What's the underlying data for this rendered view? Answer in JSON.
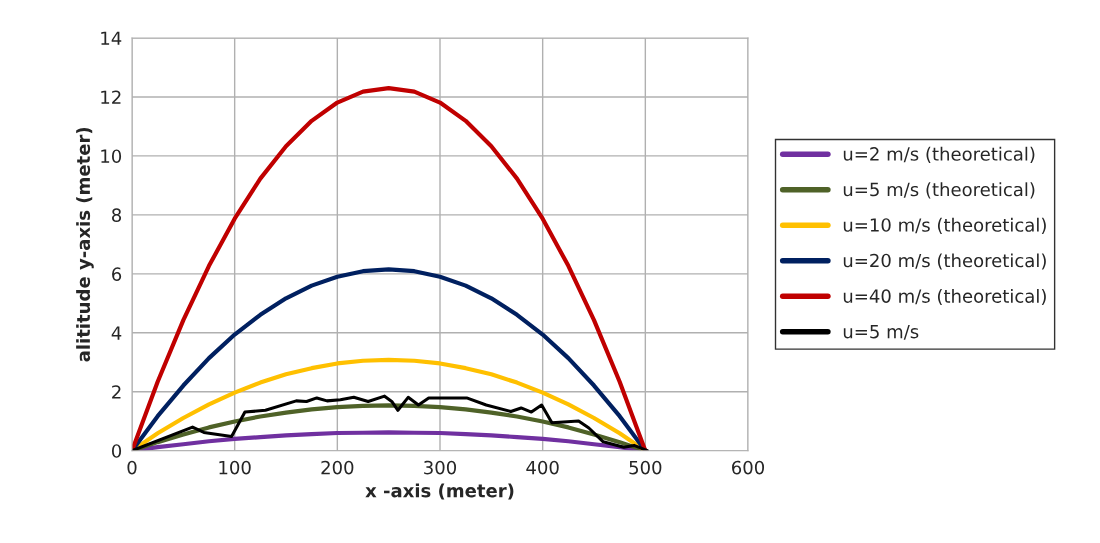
{
  "chart_data": {
    "type": "line",
    "xlabel": "x -axis (meter)",
    "ylabel": "alititude y-axis (meter)",
    "xlim": [
      0,
      600
    ],
    "xticks": [
      0,
      100,
      200,
      300,
      400,
      500,
      600
    ],
    "ylim": [
      0,
      14
    ],
    "yticks": [
      0,
      2,
      4,
      6,
      8,
      10,
      12,
      14
    ],
    "grid": true,
    "legend": "right",
    "marker": "none",
    "line_style": "solid",
    "x": [
      0,
      25,
      50,
      75,
      100,
      125,
      150,
      175,
      200,
      225,
      250,
      275,
      300,
      325,
      350,
      375,
      400,
      425,
      450,
      475,
      500
    ],
    "series": [
      {
        "name": "u=2 m/s (theoretical)",
        "color": "#7030a0",
        "values": [
          0,
          0.12,
          0.22,
          0.32,
          0.4,
          0.46,
          0.52,
          0.56,
          0.6,
          0.61,
          0.62,
          0.61,
          0.6,
          0.56,
          0.52,
          0.46,
          0.4,
          0.32,
          0.22,
          0.12,
          0
        ]
      },
      {
        "name": "u=5 m/s (theoretical)",
        "color": "#4f6228",
        "values": [
          0,
          0.29,
          0.55,
          0.79,
          0.99,
          1.16,
          1.29,
          1.4,
          1.48,
          1.52,
          1.54,
          1.52,
          1.48,
          1.4,
          1.29,
          1.16,
          0.99,
          0.79,
          0.55,
          0.29,
          0
        ]
      },
      {
        "name": "u=10 m/s (theoretical)",
        "color": "#ffc000",
        "values": [
          0,
          0.59,
          1.11,
          1.57,
          1.97,
          2.31,
          2.59,
          2.8,
          2.96,
          3.05,
          3.08,
          3.05,
          2.96,
          2.8,
          2.59,
          2.31,
          1.97,
          1.57,
          1.11,
          0.59,
          0
        ]
      },
      {
        "name": "u=20 m/s (theoretical)",
        "color": "#002060",
        "values": [
          0,
          1.17,
          2.21,
          3.14,
          3.94,
          4.61,
          5.17,
          5.6,
          5.9,
          6.09,
          6.15,
          6.09,
          5.9,
          5.6,
          5.17,
          4.61,
          3.94,
          3.14,
          2.21,
          1.17,
          0
        ]
      },
      {
        "name": "u=40 m/s (theoretical)",
        "color": "#c00000",
        "values": [
          0,
          2.34,
          4.43,
          6.27,
          7.87,
          9.23,
          10.33,
          11.19,
          11.81,
          12.18,
          12.3,
          12.18,
          11.81,
          11.19,
          10.33,
          9.23,
          7.87,
          6.27,
          4.43,
          2.34,
          0
        ]
      },
      {
        "name": "u=5 m/s",
        "color": "#000000",
        "x": [
          0,
          59,
          70,
          97,
          110,
          130,
          160,
          170,
          180,
          190,
          203,
          216,
          230,
          246,
          253,
          259,
          269,
          279,
          289,
          326,
          345,
          369,
          379,
          389,
          399,
          409,
          435,
          445,
          459,
          479,
          489,
          502
        ],
        "values": [
          0,
          0.8,
          0.62,
          0.48,
          1.31,
          1.37,
          1.69,
          1.67,
          1.79,
          1.69,
          1.73,
          1.81,
          1.67,
          1.85,
          1.67,
          1.37,
          1.81,
          1.55,
          1.79,
          1.79,
          1.55,
          1.33,
          1.45,
          1.31,
          1.55,
          0.95,
          1.01,
          0.77,
          0.3,
          0.12,
          0.18,
          0
        ]
      }
    ]
  }
}
